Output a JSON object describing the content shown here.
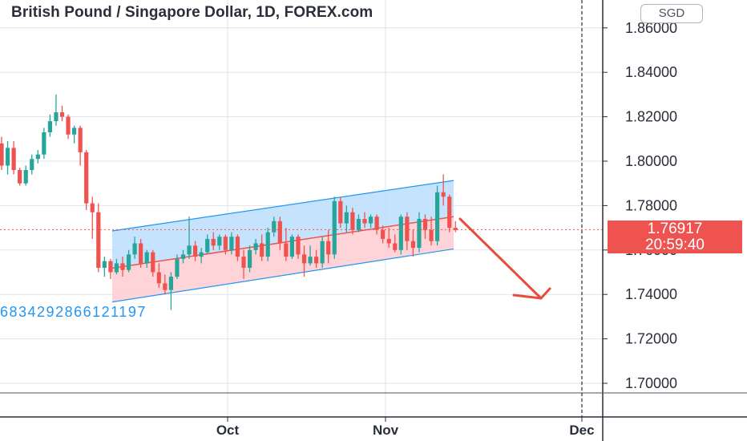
{
  "header": {
    "title": "British Pound / Singapore Dollar, 1D, FOREX.com",
    "currency": "SGD"
  },
  "price_axis": {
    "last_price": "1.76917",
    "countdown": "20:59:40"
  },
  "annotation_text": "6834292866121197",
  "colors": {
    "up": "#26a69a",
    "down": "#ef5350",
    "channel_top_fill": "#bbdefb",
    "channel_bottom_fill": "#ffcdd2",
    "channel_line": "#2196f3",
    "arrow": "#e74c3c",
    "grid": "#e0e3eb"
  },
  "chart_data": {
    "type": "candlestick",
    "ylim": [
      1.69,
      1.87
    ],
    "y_ticks": [
      "1.70000",
      "1.72000",
      "1.74000",
      "1.76000",
      "1.78000",
      "1.80000",
      "1.82000",
      "1.84000",
      "1.86000"
    ],
    "x_ticks": [
      "Oct",
      "Nov",
      "Dec"
    ],
    "last_price": 1.76917,
    "candles": [
      [
        1.808,
        1.811,
        1.796,
        1.798
      ],
      [
        1.798,
        1.809,
        1.794,
        1.806
      ],
      [
        1.806,
        1.809,
        1.794,
        1.796
      ],
      [
        1.796,
        1.797,
        1.789,
        1.79
      ],
      [
        1.79,
        1.798,
        1.789,
        1.796
      ],
      [
        1.796,
        1.803,
        1.794,
        1.801
      ],
      [
        1.801,
        1.805,
        1.799,
        1.803
      ],
      [
        1.803,
        1.815,
        1.801,
        1.813
      ],
      [
        1.813,
        1.821,
        1.811,
        1.818
      ],
      [
        1.818,
        1.83,
        1.816,
        1.822
      ],
      [
        1.822,
        1.825,
        1.818,
        1.82
      ],
      [
        1.82,
        1.821,
        1.81,
        1.812
      ],
      [
        1.812,
        1.816,
        1.808,
        1.815
      ],
      [
        1.815,
        1.816,
        1.798,
        1.804
      ],
      [
        1.804,
        1.805,
        1.778,
        1.781
      ],
      [
        1.781,
        1.784,
        1.765,
        1.777
      ],
      [
        1.777,
        1.781,
        1.75,
        1.752
      ],
      [
        1.752,
        1.757,
        1.748,
        1.755
      ],
      [
        1.755,
        1.756,
        1.747,
        1.75
      ],
      [
        1.75,
        1.756,
        1.749,
        1.754
      ],
      [
        1.754,
        1.757,
        1.748,
        1.751
      ],
      [
        1.751,
        1.76,
        1.75,
        1.758
      ],
      [
        1.758,
        1.766,
        1.756,
        1.763
      ],
      [
        1.763,
        1.765,
        1.752,
        1.754
      ],
      [
        1.754,
        1.76,
        1.752,
        1.759
      ],
      [
        1.759,
        1.76,
        1.748,
        1.75
      ],
      [
        1.75,
        1.754,
        1.743,
        1.745
      ],
      [
        1.745,
        1.749,
        1.74,
        1.742
      ],
      [
        1.742,
        1.75,
        1.733,
        1.748
      ],
      [
        1.748,
        1.758,
        1.747,
        1.756
      ],
      [
        1.756,
        1.76,
        1.754,
        1.758
      ],
      [
        1.758,
        1.775,
        1.756,
        1.762
      ],
      [
        1.762,
        1.764,
        1.755,
        1.757
      ],
      [
        1.757,
        1.761,
        1.754,
        1.759
      ],
      [
        1.759,
        1.767,
        1.758,
        1.765
      ],
      [
        1.765,
        1.768,
        1.76,
        1.762
      ],
      [
        1.762,
        1.767,
        1.76,
        1.766
      ],
      [
        1.766,
        1.767,
        1.758,
        1.76
      ],
      [
        1.76,
        1.768,
        1.758,
        1.766
      ],
      [
        1.766,
        1.767,
        1.755,
        1.757
      ],
      [
        1.757,
        1.76,
        1.747,
        1.752
      ],
      [
        1.752,
        1.762,
        1.75,
        1.76
      ],
      [
        1.76,
        1.765,
        1.758,
        1.763
      ],
      [
        1.763,
        1.767,
        1.755,
        1.757
      ],
      [
        1.757,
        1.77,
        1.755,
        1.768
      ],
      [
        1.768,
        1.775,
        1.766,
        1.773
      ],
      [
        1.773,
        1.775,
        1.76,
        1.763
      ],
      [
        1.763,
        1.77,
        1.755,
        1.757
      ],
      [
        1.757,
        1.767,
        1.756,
        1.766
      ],
      [
        1.766,
        1.767,
        1.756,
        1.758
      ],
      [
        1.758,
        1.762,
        1.748,
        1.754
      ],
      [
        1.754,
        1.762,
        1.753,
        1.757
      ],
      [
        1.757,
        1.76,
        1.752,
        1.754
      ],
      [
        1.754,
        1.766,
        1.752,
        1.764
      ],
      [
        1.764,
        1.769,
        1.754,
        1.758
      ],
      [
        1.758,
        1.784,
        1.756,
        1.782
      ],
      [
        1.782,
        1.784,
        1.77,
        1.772
      ],
      [
        1.772,
        1.78,
        1.768,
        1.777
      ],
      [
        1.777,
        1.779,
        1.767,
        1.769
      ],
      [
        1.769,
        1.776,
        1.768,
        1.774
      ],
      [
        1.774,
        1.777,
        1.77,
        1.772
      ],
      [
        1.772,
        1.776,
        1.77,
        1.775
      ],
      [
        1.775,
        1.776,
        1.767,
        1.769
      ],
      [
        1.769,
        1.771,
        1.763,
        1.765
      ],
      [
        1.765,
        1.77,
        1.761,
        1.763
      ],
      [
        1.763,
        1.767,
        1.759,
        1.76
      ],
      [
        1.76,
        1.776,
        1.758,
        1.775
      ],
      [
        1.775,
        1.777,
        1.76,
        1.764
      ],
      [
        1.764,
        1.769,
        1.757,
        1.761
      ],
      [
        1.761,
        1.777,
        1.759,
        1.774
      ],
      [
        1.774,
        1.776,
        1.765,
        1.769
      ],
      [
        1.769,
        1.775,
        1.762,
        1.764
      ],
      [
        1.764,
        1.789,
        1.762,
        1.786
      ],
      [
        1.786,
        1.794,
        1.78,
        1.784
      ],
      [
        1.784,
        1.785,
        1.768,
        1.77
      ],
      [
        1.77,
        1.773,
        1.768,
        1.769
      ]
    ],
    "channel": {
      "upper": [
        [
          1.7686,
          1.7913
        ]
      ],
      "middle": [
        [
          1.7518,
          1.775
        ]
      ],
      "lower": [
        [
          1.7366,
          1.7605
        ]
      ]
    },
    "forecast_arrow": "down"
  }
}
